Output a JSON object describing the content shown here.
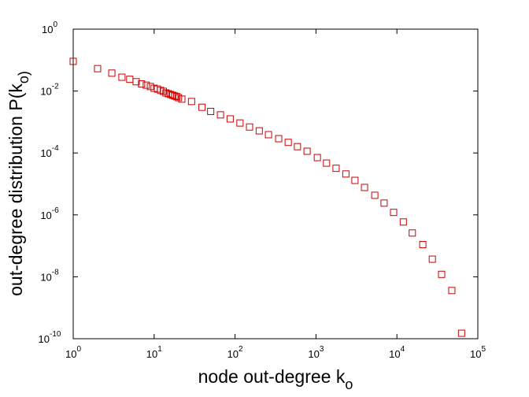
{
  "chart_data": {
    "type": "scatter",
    "x_label": "node out-degree k_o",
    "y_label": "out-degree distribution P(k_o)",
    "log_x": true,
    "log_y": true,
    "color": "#cc0000",
    "marker": "square",
    "x": [
      1,
      2,
      3,
      4,
      5,
      6,
      7,
      8,
      9,
      10,
      11,
      12,
      13,
      14,
      15,
      16,
      17,
      18,
      19,
      20,
      22,
      29,
      39,
      50,
      66,
      87,
      115,
      151,
      199,
      259,
      346,
      454,
      590,
      776,
      1040,
      1350,
      1770,
      2340,
      3030,
      3980,
      5330,
      6940,
      9100,
      12000,
      15500,
      20900,
      27400,
      35700,
      47700,
      63000
    ],
    "y": [
      0.091,
      0.053,
      0.038,
      0.028,
      0.024,
      0.02,
      0.017,
      0.0155,
      0.014,
      0.0123,
      0.0116,
      0.0105,
      0.0098,
      0.0087,
      0.0082,
      0.0077,
      0.0073,
      0.0069,
      0.0066,
      0.0061,
      0.0055,
      0.0046,
      0.003,
      0.0022,
      0.0017,
      0.00126,
      0.00093,
      0.00069,
      0.00052,
      0.00039,
      0.00029,
      0.00022,
      0.00016,
      0.000114,
      7.1e-05,
      4.7e-05,
      3.2e-05,
      2.1e-05,
      1.3e-05,
      7.7e-06,
      4.3e-06,
      2.4e-06,
      1.2e-06,
      5.9e-07,
      2.6e-07,
      1.1e-07,
      3.7e-08,
      1.2e-08,
      3.6e-09,
      1.5e-10
    ],
    "xlim": [
      1,
      100000
    ],
    "ylim": [
      1e-10,
      1
    ],
    "xticks": [
      {
        "value": 1,
        "label": "10^0"
      },
      {
        "value": 10,
        "label": "10^1"
      },
      {
        "value": 100,
        "label": "10^2"
      },
      {
        "value": 1000,
        "label": "10^3"
      },
      {
        "value": 10000,
        "label": "10^4"
      },
      {
        "value": 100000,
        "label": "10^5"
      }
    ],
    "yticks": [
      {
        "value": 1e-10,
        "label": "10^-10"
      },
      {
        "value": 1e-08,
        "label": "10^-8"
      },
      {
        "value": 1e-06,
        "label": "10^-6"
      },
      {
        "value": 0.0001,
        "label": "10^-4"
      },
      {
        "value": 0.01,
        "label": "10^-2"
      },
      {
        "value": 1,
        "label": "10^0"
      }
    ]
  }
}
